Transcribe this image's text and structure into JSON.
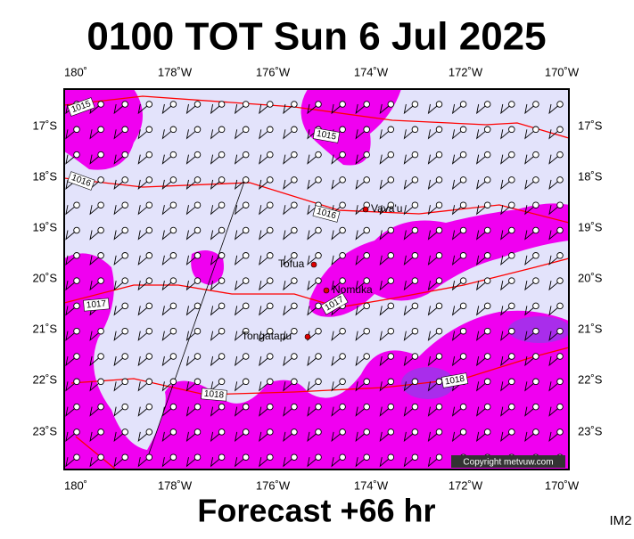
{
  "header": {
    "title": "0100 TOT Sun 6 Jul 2025"
  },
  "axes": {
    "longitude_top": [
      "180˚",
      "178˚W",
      "176˚W",
      "174˚W",
      "172˚W",
      "170˚W"
    ],
    "longitude_bottom": [
      "180˚",
      "178˚W",
      "176˚W",
      "174˚W",
      "172˚W",
      "170˚W"
    ],
    "latitude_left": [
      "17˚S",
      "18˚S",
      "19˚S",
      "20˚S",
      "21˚S",
      "22˚S",
      "23˚S"
    ],
    "latitude_right": [
      "17˚S",
      "18˚S",
      "19˚S",
      "20˚S",
      "21˚S",
      "22˚S",
      "23˚S"
    ]
  },
  "places": [
    "Vava'u",
    "Tofua",
    "Nomuka",
    "Tongatapu"
  ],
  "isobar_labels": [
    "1015",
    "1015",
    "1016",
    "1016",
    "1017",
    "1017",
    "1018",
    "1018"
  ],
  "copyright": "Copyright metvuw.com",
  "footer": {
    "forecast": "Forecast +66 hr",
    "code": "IM2"
  }
}
